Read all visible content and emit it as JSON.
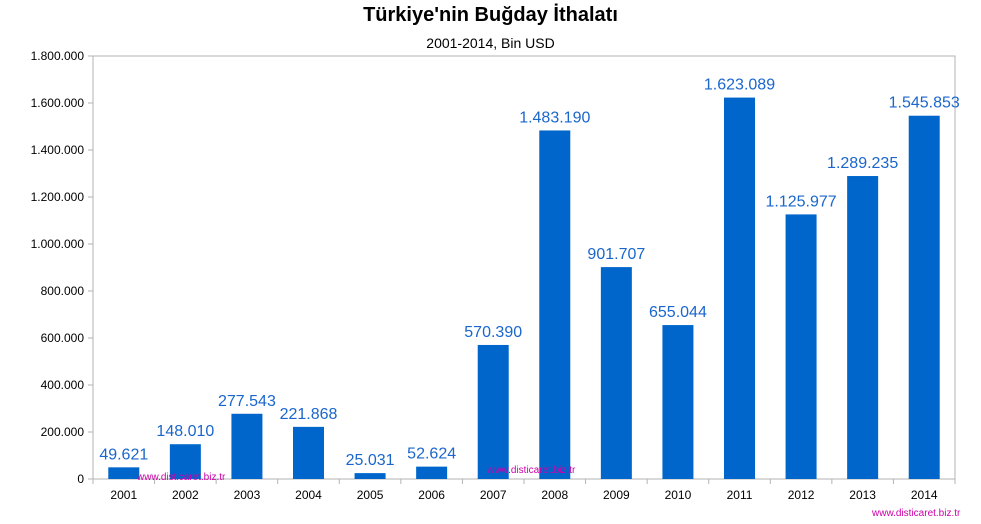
{
  "chart_data": {
    "type": "bar",
    "title": "Türkiye'nin Buğday İthalatı",
    "subtitle": "2001-2014, Bin USD",
    "categories": [
      "2001",
      "2002",
      "2003",
      "2004",
      "2005",
      "2006",
      "2007",
      "2008",
      "2009",
      "2010",
      "2011",
      "2012",
      "2013",
      "2014"
    ],
    "values": [
      49621,
      148010,
      277543,
      221868,
      25031,
      52624,
      570390,
      1483190,
      901707,
      655044,
      1623089,
      1125977,
      1289235,
      1545853
    ],
    "value_labels": [
      "49.621",
      "148.010",
      "277.543",
      "221.868",
      "25.031",
      "52.624",
      "570.390",
      "1.483.190",
      "901.707",
      "655.044",
      "1.623.089",
      "1.125.977",
      "1.289.235",
      "1.545.853"
    ],
    "ylim": [
      0,
      1800000
    ],
    "y_ticks": [
      0,
      200000,
      400000,
      600000,
      800000,
      1000000,
      1200000,
      1400000,
      1600000,
      1800000
    ],
    "y_tick_labels": [
      "0",
      "200.000",
      "400.000",
      "600.000",
      "800.000",
      "1.000.000",
      "1.200.000",
      "1.400.000",
      "1.600.000",
      "1.800.000"
    ],
    "grid": false,
    "legend": "none",
    "bar_color": "#0066cc",
    "label_color": "#1a66cc"
  },
  "watermarks": [
    "www.disticaret.biz.tr",
    "www.disticaret.biz.tr",
    "www.disticaret.biz.tr"
  ]
}
